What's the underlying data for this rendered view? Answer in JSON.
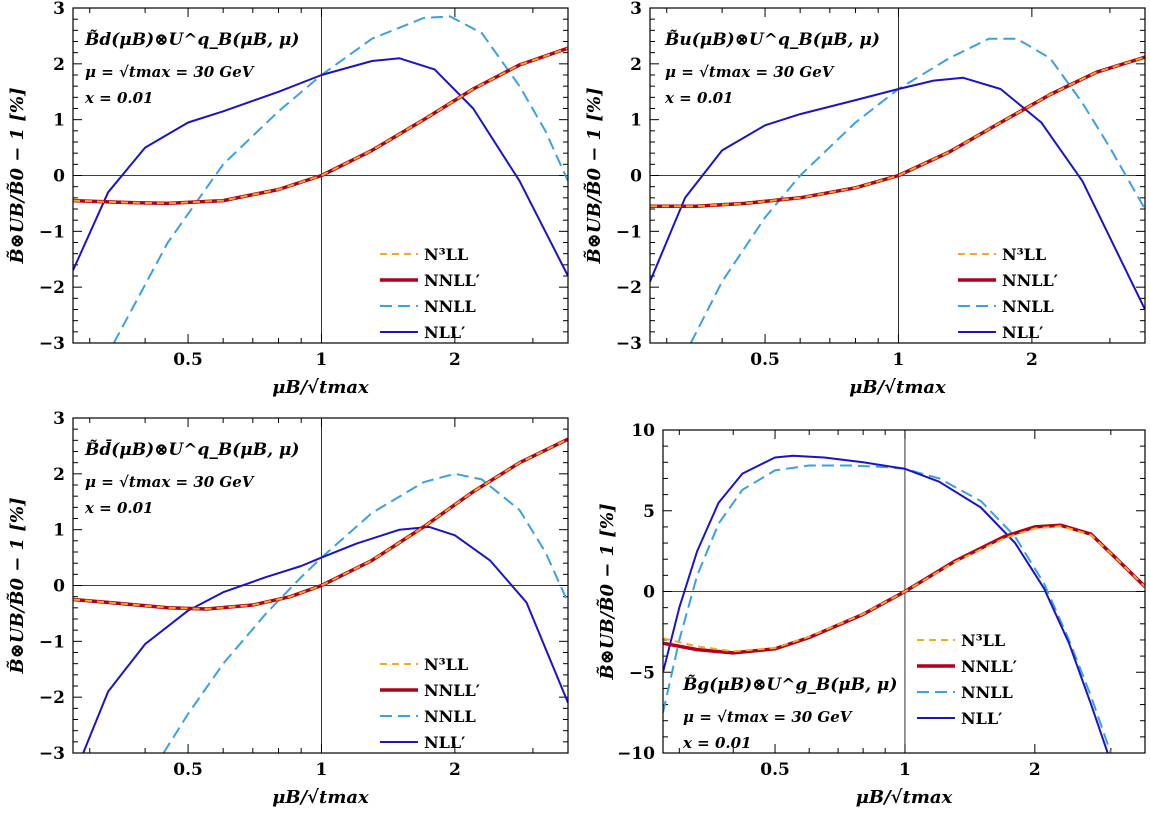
{
  "figure": {
    "xlabel": "μB/√tmax",
    "ylabel": "B̃⊗UB/B̃0 − 1  [%]"
  },
  "chart_data": [
    {
      "type": "line",
      "x_scale": "log",
      "xlim": [
        0.275,
        3.6
      ],
      "ylim": [
        -3,
        3
      ],
      "xticks": [
        0.5,
        1,
        2
      ],
      "yticks": [
        -3,
        -2,
        -1,
        0,
        1,
        2,
        3
      ],
      "xtick_labels": [
        "0.5",
        "1",
        "2"
      ],
      "ytick_labels": [
        "−3",
        "−2",
        "−1",
        "0",
        "1",
        "2",
        "3"
      ],
      "xlabel": "μB/√tmax",
      "ylabel": "B̃⊗UB/B̃0 − 1  [%]",
      "annotation": [
        "B̃d(μB)⊗U^q_B(μB, μ)",
        "μ = √tmax = 30 GeV",
        "x = 0.01"
      ],
      "legend_position": "lower-right",
      "series": [
        {
          "name": "N³LL",
          "x": [
            0.275,
            0.35,
            0.45,
            0.6,
            0.8,
            1.0,
            1.3,
            1.7,
            2.2,
            2.8,
            3.6
          ],
          "y": [
            -0.45,
            -0.48,
            -0.5,
            -0.45,
            -0.25,
            0.0,
            0.45,
            1.0,
            1.55,
            1.98,
            2.28
          ]
        },
        {
          "name": "NNLL′",
          "x": [
            0.275,
            0.35,
            0.45,
            0.6,
            0.8,
            1.0,
            1.3,
            1.7,
            2.2,
            2.8,
            3.6
          ],
          "y": [
            -0.45,
            -0.48,
            -0.5,
            -0.45,
            -0.25,
            0.0,
            0.45,
            1.0,
            1.55,
            1.98,
            2.28
          ]
        },
        {
          "name": "NNLL",
          "x": [
            0.34,
            0.45,
            0.6,
            0.8,
            1.0,
            1.3,
            1.7,
            1.95,
            2.3,
            2.8,
            3.2,
            3.6
          ],
          "y": [
            -3.0,
            -1.2,
            0.2,
            1.15,
            1.8,
            2.45,
            2.82,
            2.85,
            2.55,
            1.6,
            0.8,
            -0.1
          ]
        },
        {
          "name": "NLL′",
          "x": [
            0.275,
            0.33,
            0.4,
            0.5,
            0.6,
            0.8,
            1.0,
            1.3,
            1.5,
            1.8,
            2.2,
            2.8,
            3.6
          ],
          "y": [
            -1.7,
            -0.3,
            0.5,
            0.95,
            1.15,
            1.5,
            1.8,
            2.05,
            2.1,
            1.9,
            1.2,
            -0.1,
            -1.8
          ]
        }
      ]
    },
    {
      "type": "line",
      "x_scale": "log",
      "xlim": [
        0.275,
        3.6
      ],
      "ylim": [
        -3,
        3
      ],
      "xticks": [
        0.5,
        1,
        2
      ],
      "yticks": [
        -3,
        -2,
        -1,
        0,
        1,
        2,
        3
      ],
      "xtick_labels": [
        "0.5",
        "1",
        "2"
      ],
      "ytick_labels": [
        "−3",
        "−2",
        "−1",
        "0",
        "1",
        "2",
        "3"
      ],
      "xlabel": "μB/√tmax",
      "ylabel": "B̃⊗UB/B̃0 − 1  [%]",
      "annotation": [
        "B̃u(μB)⊗U^q_B(μB, μ)",
        "μ = √tmax = 30 GeV",
        "x = 0.01"
      ],
      "legend_position": "lower-right",
      "series": [
        {
          "name": "N³LL",
          "x": [
            0.275,
            0.35,
            0.45,
            0.6,
            0.8,
            1.0,
            1.3,
            1.7,
            2.2,
            2.8,
            3.6
          ],
          "y": [
            -0.55,
            -0.55,
            -0.5,
            -0.4,
            -0.22,
            0.0,
            0.42,
            0.95,
            1.45,
            1.85,
            2.12
          ]
        },
        {
          "name": "NNLL′",
          "x": [
            0.275,
            0.35,
            0.45,
            0.6,
            0.8,
            1.0,
            1.3,
            1.7,
            2.2,
            2.8,
            3.6
          ],
          "y": [
            -0.55,
            -0.55,
            -0.5,
            -0.4,
            -0.22,
            0.0,
            0.42,
            0.95,
            1.45,
            1.85,
            2.12
          ]
        },
        {
          "name": "NNLL",
          "x": [
            0.34,
            0.4,
            0.5,
            0.6,
            0.8,
            1.0,
            1.3,
            1.6,
            1.85,
            2.2,
            2.6,
            3.0,
            3.6
          ],
          "y": [
            -3.0,
            -1.9,
            -0.75,
            0.0,
            0.95,
            1.55,
            2.1,
            2.45,
            2.45,
            2.1,
            1.3,
            0.5,
            -0.6
          ]
        },
        {
          "name": "NLL′",
          "x": [
            0.275,
            0.33,
            0.4,
            0.5,
            0.6,
            0.8,
            1.0,
            1.2,
            1.4,
            1.7,
            2.1,
            2.6,
            3.6
          ],
          "y": [
            -1.9,
            -0.4,
            0.45,
            0.9,
            1.1,
            1.35,
            1.55,
            1.7,
            1.75,
            1.55,
            0.95,
            -0.1,
            -2.4
          ]
        }
      ]
    },
    {
      "type": "line",
      "x_scale": "log",
      "xlim": [
        0.275,
        3.6
      ],
      "ylim": [
        -3,
        3
      ],
      "xticks": [
        0.5,
        1,
        2
      ],
      "yticks": [
        -3,
        -2,
        -1,
        0,
        1,
        2,
        3
      ],
      "xtick_labels": [
        "0.5",
        "1",
        "2"
      ],
      "ytick_labels": [
        "−3",
        "−2",
        "−1",
        "0",
        "1",
        "2",
        "3"
      ],
      "xlabel": "μB/√tmax",
      "ylabel": "B̃⊗UB/B̃0 − 1  [%]",
      "annotation": [
        "B̃d̄(μB)⊗U^q_B(μB, μ)",
        "μ = √tmax = 30 GeV",
        "x = 0.01"
      ],
      "legend_position": "lower-right",
      "series": [
        {
          "name": "N³LL",
          "x": [
            0.275,
            0.35,
            0.45,
            0.55,
            0.7,
            0.85,
            1.0,
            1.3,
            1.7,
            2.2,
            2.8,
            3.6
          ],
          "y": [
            -0.25,
            -0.32,
            -0.4,
            -0.42,
            -0.35,
            -0.2,
            0.0,
            0.45,
            1.05,
            1.68,
            2.2,
            2.62
          ]
        },
        {
          "name": "NNLL′",
          "x": [
            0.275,
            0.35,
            0.45,
            0.55,
            0.7,
            0.85,
            1.0,
            1.3,
            1.7,
            2.2,
            2.8,
            3.6
          ],
          "y": [
            -0.25,
            -0.32,
            -0.4,
            -0.42,
            -0.35,
            -0.2,
            0.0,
            0.45,
            1.05,
            1.68,
            2.2,
            2.62
          ]
        },
        {
          "name": "NNLL",
          "x": [
            0.44,
            0.5,
            0.6,
            0.75,
            0.9,
            1.0,
            1.3,
            1.7,
            2.0,
            2.3,
            2.8,
            3.2,
            3.6
          ],
          "y": [
            -3.0,
            -2.3,
            -1.4,
            -0.5,
            0.15,
            0.5,
            1.3,
            1.85,
            2.0,
            1.9,
            1.35,
            0.6,
            -0.3
          ]
        },
        {
          "name": "NLL′",
          "x": [
            0.29,
            0.33,
            0.4,
            0.5,
            0.6,
            0.75,
            0.9,
            1.0,
            1.2,
            1.5,
            1.75,
            2.0,
            2.4,
            2.9,
            3.6
          ],
          "y": [
            -3.0,
            -1.9,
            -1.05,
            -0.45,
            -0.12,
            0.15,
            0.35,
            0.5,
            0.75,
            1.0,
            1.05,
            0.9,
            0.45,
            -0.3,
            -2.1
          ]
        }
      ]
    },
    {
      "type": "line",
      "x_scale": "log",
      "xlim": [
        0.275,
        3.6
      ],
      "ylim": [
        -10,
        10
      ],
      "xticks": [
        0.5,
        1,
        2
      ],
      "yticks": [
        -10,
        -5,
        0,
        5,
        10
      ],
      "xtick_labels": [
        "0.5",
        "1",
        "2"
      ],
      "ytick_labels": [
        "−10",
        "−5",
        "0",
        "5",
        "10"
      ],
      "xlabel": "μB/√tmax",
      "ylabel": "B̃⊗UB/B̃0 − 1  [%]",
      "annotation": [
        "B̃g(μB)⊗U^g_B(μB, μ)",
        "μ = √tmax = 30 GeV",
        "x = 0.01"
      ],
      "legend_position": "lower-right",
      "series": [
        {
          "name": "N³LL",
          "x": [
            0.275,
            0.33,
            0.4,
            0.5,
            0.6,
            0.8,
            1.0,
            1.3,
            1.7,
            2.0,
            2.3,
            2.7,
            3.1,
            3.6
          ],
          "y": [
            -2.9,
            -3.4,
            -3.7,
            -3.5,
            -2.8,
            -1.4,
            0.0,
            1.8,
            3.3,
            3.9,
            4.05,
            3.5,
            2.0,
            0.3
          ]
        },
        {
          "name": "NNLL′",
          "x": [
            0.275,
            0.33,
            0.4,
            0.5,
            0.6,
            0.8,
            1.0,
            1.3,
            1.7,
            2.0,
            2.3,
            2.7,
            3.1,
            3.6
          ],
          "y": [
            -3.2,
            -3.6,
            -3.8,
            -3.55,
            -2.85,
            -1.42,
            0.0,
            1.85,
            3.4,
            4.0,
            4.1,
            3.55,
            2.0,
            0.3
          ]
        },
        {
          "name": "NNLL",
          "x": [
            0.275,
            0.3,
            0.33,
            0.37,
            0.42,
            0.5,
            0.6,
            0.75,
            0.9,
            1.0,
            1.2,
            1.5,
            1.8,
            2.1,
            2.4,
            2.7,
            3.0
          ],
          "y": [
            -7.5,
            -3.0,
            1.0,
            4.2,
            6.3,
            7.5,
            7.8,
            7.8,
            7.7,
            7.6,
            7.0,
            5.6,
            3.4,
            0.5,
            -3.0,
            -6.5,
            -10.0
          ]
        },
        {
          "name": "NLL′",
          "x": [
            0.275,
            0.3,
            0.33,
            0.37,
            0.42,
            0.5,
            0.55,
            0.65,
            0.8,
            1.0,
            1.2,
            1.5,
            1.8,
            2.1,
            2.4,
            2.7,
            2.95
          ],
          "y": [
            -5.0,
            -1.0,
            2.5,
            5.5,
            7.3,
            8.3,
            8.4,
            8.3,
            8.0,
            7.6,
            6.8,
            5.2,
            3.0,
            0.2,
            -3.2,
            -7.0,
            -10.0
          ]
        }
      ]
    }
  ],
  "legend_styles": {
    "N³LL": {
      "color": "#f5a623",
      "width": 2,
      "dash": "7,5"
    },
    "NNLL′": {
      "color": "#b0001e",
      "width": 3.5,
      "dash": ""
    },
    "NNLL": {
      "color": "#3aa0e6",
      "width": 2,
      "dash": "12,6"
    },
    "NLL′": {
      "color": "#1a14c8",
      "width": 2,
      "dash": ""
    }
  }
}
